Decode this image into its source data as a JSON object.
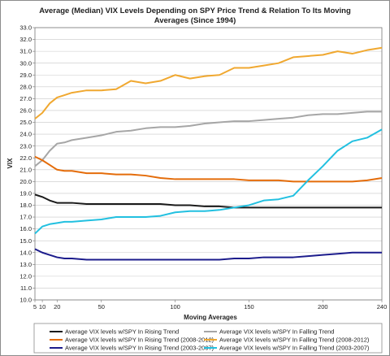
{
  "chart_data": {
    "type": "line",
    "title_lines": [
      "Average (Median) VIX Levels Depending on SPY Price Trend & Relation To Its Moving",
      "Averages (Since 1994)"
    ],
    "xlabel": "Moving Averages",
    "ylabel": "VIX",
    "xlim": [
      5,
      240
    ],
    "ylim": [
      10.0,
      33.0
    ],
    "y_tick_step": 1.0,
    "x_ticks": [
      5,
      10,
      20,
      50,
      100,
      150,
      200,
      240
    ],
    "x_tick_labels": [
      "5",
      "10",
      "20",
      "50",
      "100",
      "150",
      "200",
      "240"
    ],
    "y_tick_labels": [
      "10.0",
      "11.0",
      "12.0",
      "13.0",
      "14.0",
      "15.0",
      "16.0",
      "17.0",
      "18.0",
      "19.0",
      "20.0",
      "21.0",
      "22.0",
      "23.0",
      "24.0",
      "25.0",
      "26.0",
      "27.0",
      "28.0",
      "29.0",
      "30.0",
      "31.0",
      "32.0",
      "33.0"
    ],
    "grid": true,
    "legend_position": "bottom",
    "x": [
      5,
      10,
      15,
      20,
      25,
      30,
      40,
      50,
      60,
      70,
      80,
      90,
      100,
      110,
      120,
      130,
      140,
      150,
      160,
      170,
      180,
      190,
      200,
      210,
      220,
      230,
      240
    ],
    "series": [
      {
        "name": "Average VIX levels w/SPY In Rising Trend",
        "color": "#1a1a1a",
        "values": [
          18.9,
          18.7,
          18.4,
          18.2,
          18.2,
          18.2,
          18.1,
          18.1,
          18.1,
          18.1,
          18.1,
          18.1,
          18.0,
          18.0,
          17.9,
          17.9,
          17.8,
          17.8,
          17.8,
          17.8,
          17.8,
          17.8,
          17.8,
          17.8,
          17.8,
          17.8,
          17.8
        ]
      },
      {
        "name": "Average VIX levels w/SPY In Falling Trend",
        "color": "#a6a6a6",
        "values": [
          21.3,
          21.8,
          22.6,
          23.2,
          23.3,
          23.5,
          23.7,
          23.9,
          24.2,
          24.3,
          24.5,
          24.6,
          24.6,
          24.7,
          24.9,
          25.0,
          25.1,
          25.1,
          25.2,
          25.3,
          25.4,
          25.6,
          25.7,
          25.7,
          25.8,
          25.9,
          25.9
        ]
      },
      {
        "name": "Average VIX levels w/SPY In Rising Trend (2008-2012)",
        "color": "#e46c0a",
        "values": [
          22.1,
          21.8,
          21.4,
          21.0,
          20.9,
          20.9,
          20.7,
          20.7,
          20.6,
          20.6,
          20.5,
          20.3,
          20.2,
          20.2,
          20.2,
          20.2,
          20.2,
          20.1,
          20.1,
          20.1,
          20.0,
          20.0,
          20.0,
          20.0,
          20.0,
          20.1,
          20.3
        ]
      },
      {
        "name": "Average VIX levels w/SPY In Falling Trend (2008-2012)",
        "color": "#f0a830",
        "values": [
          25.3,
          25.8,
          26.6,
          27.1,
          27.3,
          27.5,
          27.7,
          27.7,
          27.8,
          28.5,
          28.3,
          28.5,
          29.0,
          28.7,
          28.9,
          29.0,
          29.6,
          29.6,
          29.8,
          30.0,
          30.5,
          30.6,
          30.7,
          31.0,
          30.8,
          31.1,
          31.3
        ]
      },
      {
        "name": "Average VIX levels w/SPY In Rising Trend (2003-2007)",
        "color": "#1c1c8c",
        "values": [
          14.3,
          14.0,
          13.8,
          13.6,
          13.5,
          13.5,
          13.4,
          13.4,
          13.4,
          13.4,
          13.4,
          13.4,
          13.4,
          13.4,
          13.4,
          13.4,
          13.5,
          13.5,
          13.6,
          13.6,
          13.6,
          13.7,
          13.8,
          13.9,
          14.0,
          14.0,
          14.0
        ]
      },
      {
        "name": "Average VIX levels w/SPY In Falling Trend (2003-2007)",
        "color": "#22c0e0",
        "values": [
          15.6,
          16.2,
          16.4,
          16.5,
          16.6,
          16.6,
          16.7,
          16.8,
          17.0,
          17.0,
          17.0,
          17.1,
          17.4,
          17.5,
          17.5,
          17.6,
          17.8,
          18.0,
          18.4,
          18.5,
          18.8,
          20.1,
          21.3,
          22.6,
          23.4,
          23.7,
          24.4
        ]
      }
    ]
  }
}
